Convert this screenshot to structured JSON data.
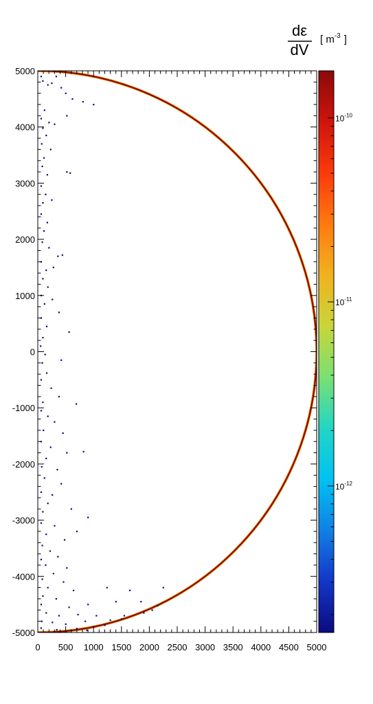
{
  "chart_data": {
    "type": "heatmap",
    "title": "",
    "xlabel": "",
    "ylabel": "",
    "xlim": [
      0,
      5000
    ],
    "ylim": [
      -5000,
      5000
    ],
    "x_ticks": [
      0,
      500,
      1000,
      1500,
      2000,
      2500,
      3000,
      3500,
      4000,
      4500,
      5000
    ],
    "y_ticks": [
      5000,
      4000,
      3000,
      2000,
      1000,
      0,
      -1000,
      -2000,
      -3000,
      -4000,
      -5000
    ],
    "colorbar": {
      "label_top": "dε",
      "label_bottom": "dV",
      "unit_base": "[ m",
      "unit_exp": "-3",
      "unit_close": "]",
      "scale": "log",
      "range": [
        1.6e-13,
        1.8e-10
      ],
      "tick_values": [
        1e-10,
        1e-11,
        1e-12
      ],
      "tick_bases": [
        "10",
        "10",
        "10"
      ],
      "tick_exps": [
        "-10",
        "-11",
        "-12"
      ],
      "palette": [
        "#0b0b80",
        "#1336c8",
        "#1180e6",
        "#00c2f2",
        "#22d6c4",
        "#7ae072",
        "#c8d63a",
        "#f0b21e",
        "#ff7a10",
        "#fb3a0c",
        "#cf140c",
        "#8a0a0a"
      ]
    },
    "series": [
      {
        "type": "boundary-arc",
        "radius": 5000,
        "value": 1.6e-10
      },
      {
        "type": "sparse-points",
        "value": 2e-13,
        "points": [
          [
            60,
            4900
          ],
          [
            90,
            4820
          ],
          [
            180,
            4750
          ],
          [
            250,
            4780
          ],
          [
            330,
            4900
          ],
          [
            420,
            4700
          ],
          [
            500,
            4600
          ],
          [
            620,
            4500
          ],
          [
            810,
            4450
          ],
          [
            1000,
            4400
          ],
          [
            120,
            4300
          ],
          [
            60,
            4150
          ],
          [
            200,
            4080
          ],
          [
            90,
            3980
          ],
          [
            300,
            4050
          ],
          [
            520,
            4200
          ],
          [
            150,
            3850
          ],
          [
            70,
            3700
          ],
          [
            230,
            3600
          ],
          [
            110,
            3450
          ],
          [
            520,
            3200
          ],
          [
            580,
            3180
          ],
          [
            80,
            3300
          ],
          [
            170,
            3150
          ],
          [
            60,
            2950
          ],
          [
            140,
            2800
          ],
          [
            90,
            2650
          ],
          [
            250,
            2700
          ],
          [
            60,
            2450
          ],
          [
            170,
            2300
          ],
          [
            110,
            2150
          ],
          [
            80,
            1950
          ],
          [
            200,
            1850
          ],
          [
            360,
            1700
          ],
          [
            440,
            1720
          ],
          [
            60,
            1600
          ],
          [
            150,
            1450
          ],
          [
            280,
            1500
          ],
          [
            90,
            1300
          ],
          [
            180,
            1150
          ],
          [
            60,
            1000
          ],
          [
            260,
            930
          ],
          [
            120,
            850
          ],
          [
            380,
            700
          ],
          [
            60,
            600
          ],
          [
            160,
            450
          ],
          [
            560,
            350
          ],
          [
            90,
            250
          ],
          [
            50,
            100
          ],
          [
            130,
            -50
          ],
          [
            80,
            -200
          ],
          [
            420,
            -150
          ],
          [
            160,
            -380
          ],
          [
            60,
            -500
          ],
          [
            240,
            -650
          ],
          [
            380,
            -800
          ],
          [
            90,
            -900
          ],
          [
            690,
            -930
          ],
          [
            60,
            -1050
          ],
          [
            180,
            -1150
          ],
          [
            300,
            -1250
          ],
          [
            100,
            -1400
          ],
          [
            450,
            -1450
          ],
          [
            60,
            -1600
          ],
          [
            230,
            -1700
          ],
          [
            520,
            -1800
          ],
          [
            820,
            -1780
          ],
          [
            150,
            -1900
          ],
          [
            70,
            -2050
          ],
          [
            350,
            -2100
          ],
          [
            120,
            -2250
          ],
          [
            420,
            -2350
          ],
          [
            60,
            -2500
          ],
          [
            260,
            -2550
          ],
          [
            180,
            -2700
          ],
          [
            600,
            -2800
          ],
          [
            90,
            -2850
          ],
          [
            900,
            -2950
          ],
          [
            60,
            -3050
          ],
          [
            300,
            -3100
          ],
          [
            150,
            -3250
          ],
          [
            700,
            -3200
          ],
          [
            480,
            -3350
          ],
          [
            80,
            -3450
          ],
          [
            220,
            -3550
          ],
          [
            60,
            -3700
          ],
          [
            360,
            -3650
          ],
          [
            140,
            -3800
          ],
          [
            520,
            -3850
          ],
          [
            280,
            -3950
          ],
          [
            80,
            -4050
          ],
          [
            460,
            -4100
          ],
          [
            180,
            -4200
          ],
          [
            640,
            -4250
          ],
          [
            90,
            -4350
          ],
          [
            330,
            -4400
          ],
          [
            1240,
            -4200
          ],
          [
            1650,
            -4250
          ],
          [
            2250,
            -4200
          ],
          [
            60,
            -4500
          ],
          [
            560,
            -4550
          ],
          [
            900,
            -4500
          ],
          [
            1400,
            -4450
          ],
          [
            1850,
            -4450
          ],
          [
            150,
            -4650
          ],
          [
            380,
            -4700
          ],
          [
            720,
            -4680
          ],
          [
            1050,
            -4700
          ],
          [
            1550,
            -4700
          ],
          [
            2050,
            -4600
          ],
          [
            70,
            -4800
          ],
          [
            260,
            -4820
          ],
          [
            500,
            -4850
          ],
          [
            850,
            -4800
          ],
          [
            1300,
            -4780
          ],
          [
            60,
            -4920
          ],
          [
            340,
            -4950
          ],
          [
            700,
            -4930
          ],
          [
            1000,
            -4900
          ],
          [
            1200,
            -4870
          ],
          [
            100,
            -5000
          ],
          [
            500,
            -4990
          ],
          [
            880,
            -4960
          ],
          [
            1500,
            -4760
          ],
          [
            1900,
            -4650
          ],
          [
            2150,
            -4520
          ]
        ]
      }
    ]
  }
}
